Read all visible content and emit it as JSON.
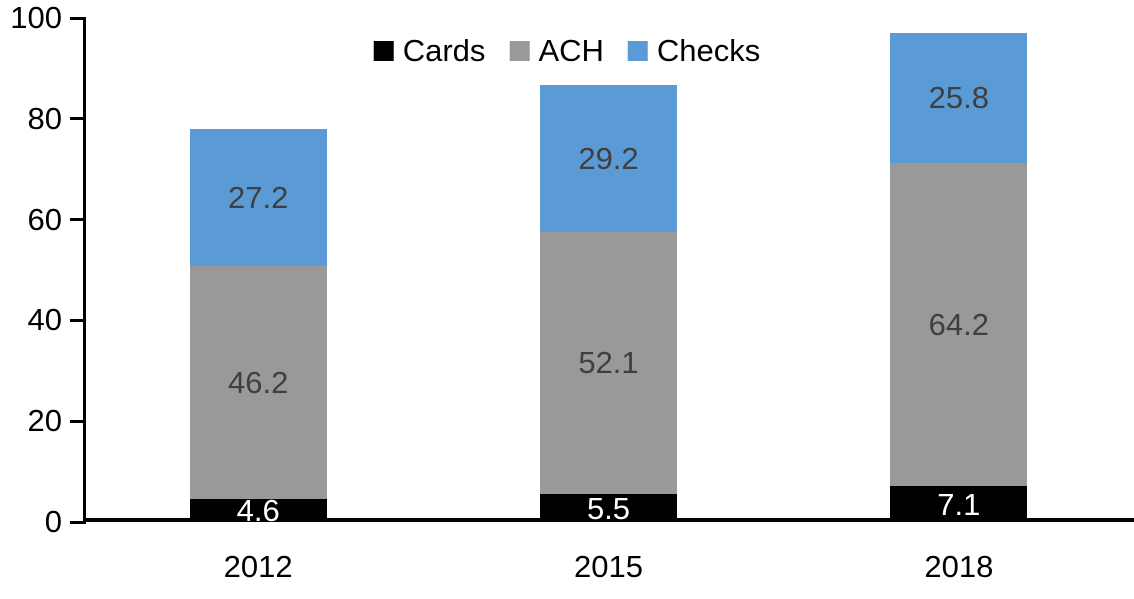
{
  "chart_data": {
    "type": "bar",
    "stacked": true,
    "title": "",
    "categories": [
      "2012",
      "2015",
      "2018"
    ],
    "series": [
      {
        "name": "Cards",
        "color": "#000000",
        "label_color": "#ffffff",
        "values": [
          4.6,
          5.5,
          7.1
        ]
      },
      {
        "name": "ACH",
        "color": "#999999",
        "label_color": "#3f3f3f",
        "values": [
          46.2,
          52.1,
          64.2
        ]
      },
      {
        "name": "Checks",
        "color": "#5b9bd5",
        "label_color": "#3f3f3f",
        "values": [
          27.2,
          29.2,
          25.8
        ]
      }
    ],
    "totals": [
      78.0,
      86.8,
      97.1
    ],
    "ylim": [
      0,
      100
    ],
    "yticks": [
      0,
      20,
      40,
      60,
      80,
      100
    ],
    "xlabel": "",
    "ylabel": "",
    "grid": false,
    "legend": {
      "position": "top-center",
      "labels": [
        "Cards",
        "ACH",
        "Checks"
      ]
    },
    "axis_color": "#000000",
    "background": "#ffffff"
  }
}
